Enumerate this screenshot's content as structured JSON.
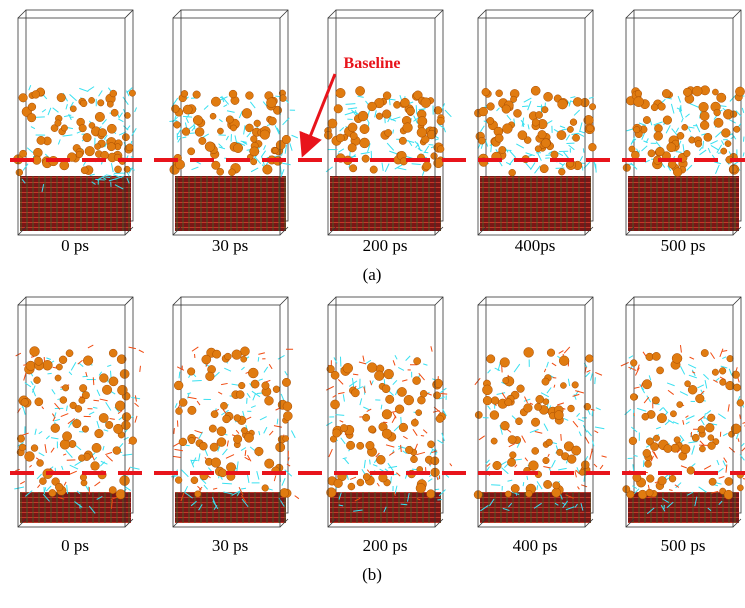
{
  "figure": {
    "annotation": "Baseline",
    "rows": [
      {
        "label": "(a)",
        "times": [
          "0 ps",
          "30 ps",
          "200 ps",
          "400ps",
          "500 ps"
        ]
      },
      {
        "label": "(b)",
        "times": [
          "0 ps",
          "30 ps",
          "200 ps",
          "400 ps",
          "500 ps"
        ]
      }
    ]
  }
}
